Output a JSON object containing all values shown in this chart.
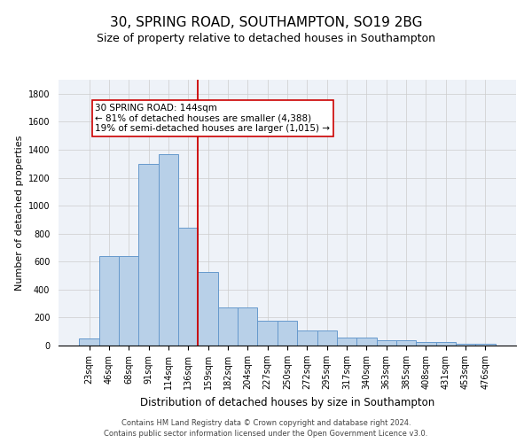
{
  "title1": "30, SPRING ROAD, SOUTHAMPTON, SO19 2BG",
  "title2": "Size of property relative to detached houses in Southampton",
  "xlabel": "Distribution of detached houses by size in Southampton",
  "ylabel": "Number of detached properties",
  "categories": [
    "23sqm",
    "46sqm",
    "68sqm",
    "91sqm",
    "114sqm",
    "136sqm",
    "159sqm",
    "182sqm",
    "204sqm",
    "227sqm",
    "250sqm",
    "272sqm",
    "295sqm",
    "317sqm",
    "340sqm",
    "363sqm",
    "385sqm",
    "408sqm",
    "431sqm",
    "453sqm",
    "476sqm"
  ],
  "values": [
    50,
    640,
    640,
    1300,
    1370,
    845,
    525,
    270,
    270,
    175,
    175,
    105,
    105,
    60,
    60,
    35,
    35,
    25,
    25,
    15,
    15
  ],
  "bar_color": "#b8d0e8",
  "bar_edge_color": "#6699cc",
  "vline_x": 5.5,
  "vline_color": "#cc0000",
  "annotation_text": "30 SPRING ROAD: 144sqm\n← 81% of detached houses are smaller (4,388)\n19% of semi-detached houses are larger (1,015) →",
  "annotation_box_color": "#cc0000",
  "annotation_text_color": "#000000",
  "ylim": [
    0,
    1900
  ],
  "yticks": [
    0,
    200,
    400,
    600,
    800,
    1000,
    1200,
    1400,
    1600,
    1800
  ],
  "grid_color": "#cccccc",
  "background_color": "#eef2f8",
  "footer1": "Contains HM Land Registry data © Crown copyright and database right 2024.",
  "footer2": "Contains public sector information licensed under the Open Government Licence v3.0.",
  "title1_fontsize": 11,
  "title2_fontsize": 9,
  "xlabel_fontsize": 8.5,
  "ylabel_fontsize": 8,
  "tick_fontsize": 7,
  "annotation_fontsize": 7.5,
  "footer_fontsize": 6
}
